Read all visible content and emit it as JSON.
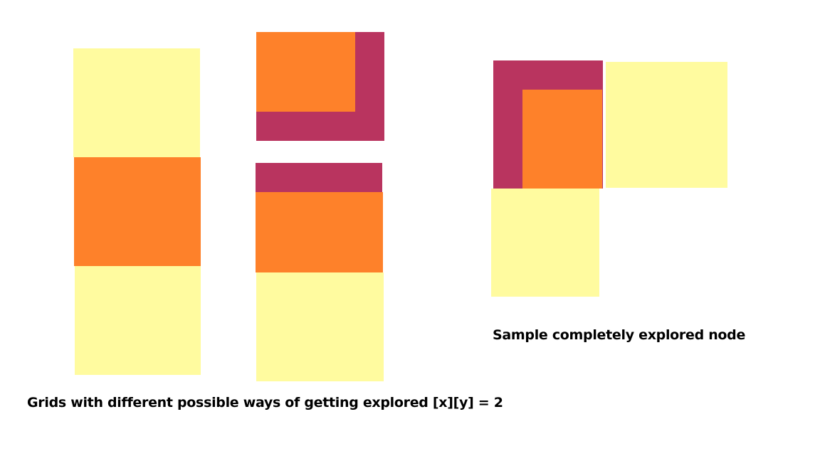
{
  "colors": {
    "yellow": "#fffb9f",
    "orange": "#fe812a",
    "crimson": "#b9345f"
  },
  "captions": {
    "grids": "Grids with different possible ways of getting explored [x][y] = 2",
    "sample": "Sample completely explored node"
  }
}
